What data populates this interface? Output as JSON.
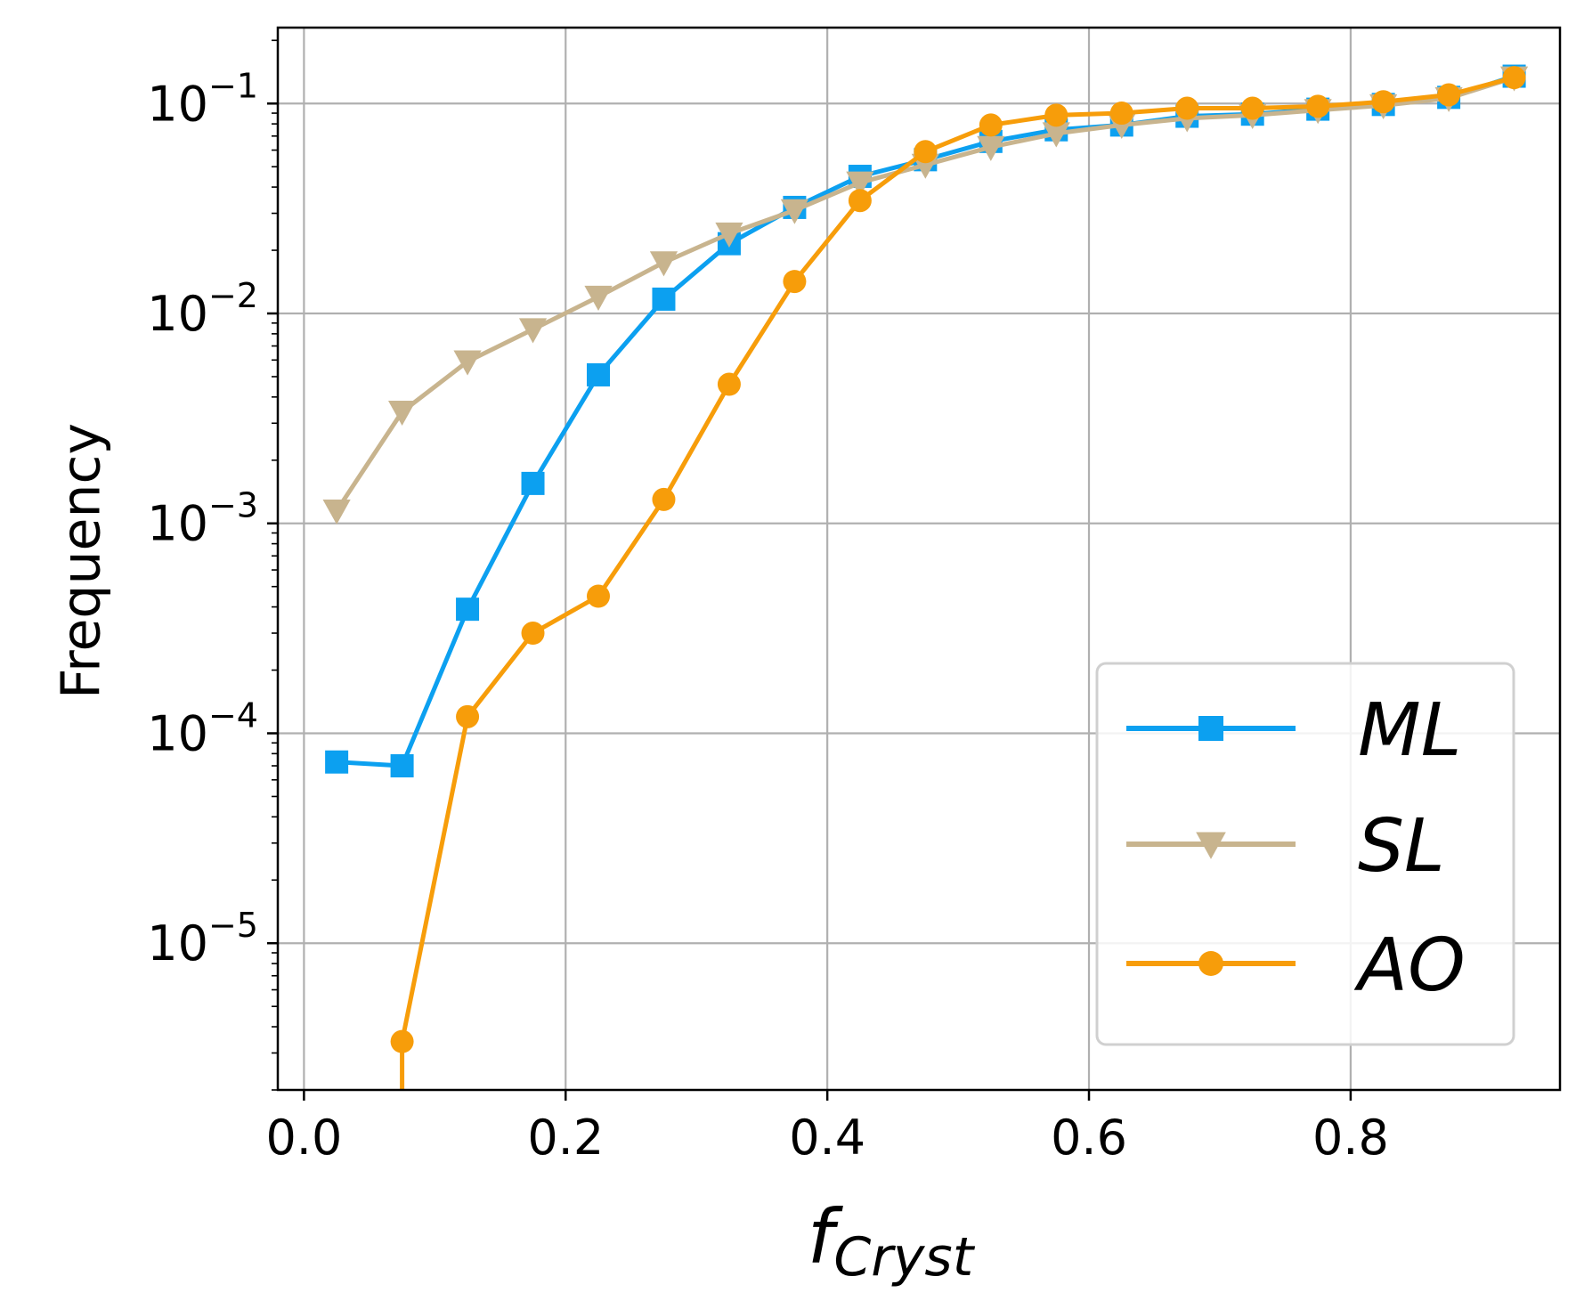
{
  "chart_data": {
    "type": "line",
    "xlabel_main": "f",
    "xlabel_sub": "Cryst",
    "ylabel": "Frequency",
    "yscale": "log",
    "xlim": [
      -0.02,
      0.96
    ],
    "ylim": [
      2e-06,
      0.23
    ],
    "xticks": [
      0.0,
      0.2,
      0.4,
      0.6,
      0.8
    ],
    "xtick_labels": [
      "0.0",
      "0.2",
      "0.4",
      "0.6",
      "0.8"
    ],
    "yticks": [
      {
        "value": 0.1,
        "base": "10",
        "exp": "−1"
      },
      {
        "value": 0.01,
        "base": "10",
        "exp": "−2"
      },
      {
        "value": 0.001,
        "base": "10",
        "exp": "−3"
      },
      {
        "value": 0.0001,
        "base": "10",
        "exp": "−4"
      },
      {
        "value": 1e-05,
        "base": "10",
        "exp": "−5"
      }
    ],
    "grid": true,
    "legend_position": "lower right",
    "series": [
      {
        "name": "ML",
        "color": "#0ca0f0",
        "marker": "square",
        "x": [
          0.025,
          0.075,
          0.125,
          0.175,
          0.225,
          0.275,
          0.325,
          0.375,
          0.425,
          0.475,
          0.525,
          0.575,
          0.625,
          0.675,
          0.725,
          0.775,
          0.825,
          0.875,
          0.925
        ],
        "y": [
          7.3e-05,
          7e-05,
          0.00039,
          0.00155,
          0.0051,
          0.0117,
          0.0215,
          0.032,
          0.045,
          0.054,
          0.066,
          0.075,
          0.079,
          0.087,
          0.089,
          0.094,
          0.099,
          0.107,
          0.135
        ]
      },
      {
        "name": "SL",
        "color": "#c8b48e",
        "marker": "triangle-down",
        "x": [
          0.025,
          0.075,
          0.125,
          0.175,
          0.225,
          0.275,
          0.325,
          0.375,
          0.425,
          0.475,
          0.525,
          0.575,
          0.625,
          0.675,
          0.725,
          0.775,
          0.825,
          0.875,
          0.925
        ],
        "y": [
          0.00115,
          0.0034,
          0.0059,
          0.0084,
          0.012,
          0.0175,
          0.024,
          0.031,
          0.042,
          0.051,
          0.062,
          0.072,
          0.079,
          0.085,
          0.088,
          0.093,
          0.098,
          0.106,
          0.133
        ]
      },
      {
        "name": "AO",
        "color": "#f79d0a",
        "marker": "circle",
        "x": [
          0.075,
          0.125,
          0.175,
          0.225,
          0.275,
          0.325,
          0.375,
          0.425,
          0.475,
          0.525,
          0.575,
          0.625,
          0.675,
          0.725,
          0.775,
          0.825,
          0.875,
          0.925
        ],
        "y": [
          3.4e-06,
          0.00012,
          0.0003,
          0.00045,
          0.0013,
          0.0046,
          0.0142,
          0.0345,
          0.059,
          0.079,
          0.088,
          0.09,
          0.095,
          0.095,
          0.097,
          0.102,
          0.11,
          0.133
        ],
        "line_extends_below_axis": true
      }
    ]
  }
}
